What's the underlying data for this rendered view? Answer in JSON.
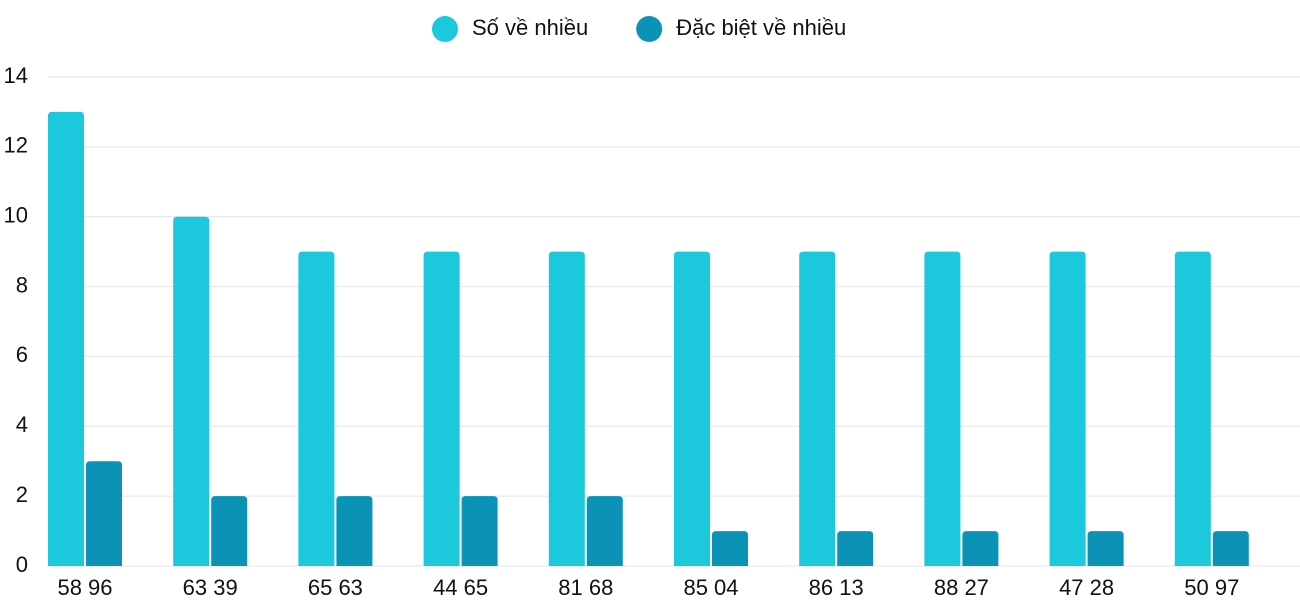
{
  "chart_data": {
    "type": "bar",
    "categories": [
      "58 96",
      "63 39",
      "65 63",
      "44 65",
      "81 68",
      "85 04",
      "86 13",
      "88 27",
      "47 28",
      "50 97"
    ],
    "series": [
      {
        "name": "Số về nhiều",
        "color": "#1bc8dc",
        "values": [
          13,
          10,
          9,
          9,
          9,
          9,
          9,
          9,
          9,
          9
        ]
      },
      {
        "name": "Đặc biệt về nhiều",
        "color": "#0a93b6",
        "values": [
          3,
          2,
          2,
          2,
          2,
          1,
          1,
          1,
          1,
          1
        ]
      }
    ],
    "ylim": [
      0,
      14
    ],
    "yticks": [
      0,
      2,
      4,
      6,
      8,
      10,
      12,
      14
    ],
    "grid": true,
    "legend": "top"
  }
}
